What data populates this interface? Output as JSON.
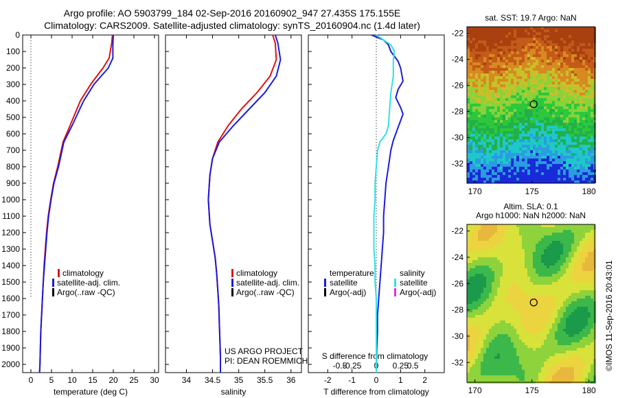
{
  "figure": {
    "title_line1": "Argo profile: AO 5903799_184 02-Sep-2016 20160902_947 27.435S 175.155E",
    "title_line2": "Climatology: CARS2009. Satellite-adjusted climatology: synTS_20160904.nc (1.4d later)",
    "credit": "©IMOS 11-Sep-2016 20:43:01",
    "project_line1": "US ARGO PROJECT",
    "project_line2": "PI: DEAN ROEMMICH"
  },
  "colors": {
    "climatology": "#e01010",
    "satellite": "#1a1adc",
    "argo": "#000000",
    "sal_satellite": "#30e0e8",
    "sal_argo": "#e030e0"
  },
  "chart_data": [
    {
      "type": "line",
      "xlabel": "temperature (deg C)",
      "ylabel": "",
      "xlim": [
        -2,
        31
      ],
      "ylim": [
        2050,
        0
      ],
      "xticks": [
        0,
        5,
        10,
        15,
        20,
        25,
        30
      ],
      "yticks": [
        0,
        100,
        200,
        300,
        400,
        500,
        600,
        700,
        800,
        900,
        1000,
        1100,
        1200,
        1300,
        1400,
        1500,
        1600,
        1700,
        1800,
        1900,
        2000
      ],
      "legend": [
        "climatology",
        "satellite-adj. clim.",
        "Argo(..raw -QC)"
      ],
      "series": [
        {
          "name": "climatology",
          "color_key": "climatology",
          "x": [
            19.8,
            19.6,
            19.0,
            17.5,
            14.5,
            12.0,
            9.5,
            7.8,
            6.5,
            5.5,
            4.8,
            4.2,
            3.8,
            3.5,
            3.2,
            3.0,
            2.8,
            2.6,
            2.4,
            2.3,
            2.2,
            2.1
          ],
          "y": [
            0,
            50,
            140,
            200,
            300,
            400,
            550,
            650,
            800,
            900,
            1000,
            1100,
            1200,
            1300,
            1400,
            1500,
            1600,
            1700,
            1800,
            1900,
            2000,
            2050
          ]
        },
        {
          "name": "satellite-adj. clim.",
          "color_key": "satellite",
          "x": [
            20.0,
            19.9,
            19.9,
            18.8,
            15.3,
            12.8,
            10.0,
            8.0,
            6.7,
            5.6,
            4.9,
            4.3,
            3.9,
            3.6,
            3.3,
            3.0,
            2.8,
            2.6,
            2.4,
            2.3,
            2.2,
            2.1
          ],
          "y": [
            0,
            50,
            140,
            200,
            300,
            400,
            550,
            650,
            800,
            900,
            1000,
            1100,
            1200,
            1300,
            1400,
            1500,
            1600,
            1700,
            1800,
            1900,
            2000,
            2050
          ]
        }
      ],
      "reference_x": 0,
      "reference_ymax": 1600
    },
    {
      "type": "line",
      "xlabel": "salinity",
      "ylabel": "",
      "xlim": [
        33.6,
        36.2
      ],
      "ylim": [
        2050,
        0
      ],
      "xticks": [
        34,
        34.5,
        35,
        35.5,
        36
      ],
      "legend": [
        "climatology",
        "satellite-adj. clim.",
        "Argo(..raw -QC)"
      ],
      "series": [
        {
          "name": "climatology",
          "color_key": "climatology",
          "x": [
            35.65,
            35.7,
            35.72,
            35.6,
            35.35,
            35.05,
            34.8,
            34.6,
            34.5,
            34.45,
            34.42,
            34.45,
            34.5,
            34.55,
            34.58,
            34.6,
            34.62,
            34.63,
            34.64,
            34.65,
            34.65
          ],
          "y": [
            0,
            50,
            150,
            250,
            350,
            450,
            550,
            650,
            750,
            850,
            1000,
            1150,
            1250,
            1350,
            1450,
            1550,
            1650,
            1750,
            1850,
            1950,
            2050
          ]
        },
        {
          "name": "satellite-adj. clim.",
          "color_key": "satellite",
          "x": [
            35.7,
            35.75,
            35.8,
            35.72,
            35.5,
            35.2,
            34.9,
            34.63,
            34.5,
            34.45,
            34.42,
            34.45,
            34.5,
            34.55,
            34.58,
            34.6,
            34.62,
            34.63,
            34.64,
            34.65,
            34.65
          ],
          "y": [
            0,
            50,
            150,
            250,
            350,
            450,
            550,
            650,
            750,
            850,
            1000,
            1150,
            1250,
            1350,
            1450,
            1550,
            1650,
            1750,
            1850,
            1950,
            2050
          ]
        }
      ]
    },
    {
      "type": "line",
      "xlabel": "T difference from climatology",
      "xlabel_top": "S difference from climatology",
      "xlim": [
        -2.8,
        2.8
      ],
      "ylim": [
        2050,
        0
      ],
      "xticks": [
        -2,
        -1,
        0,
        1,
        2
      ],
      "xticks_top": [
        "-0.5",
        "-0.25",
        "0",
        "0.25",
        "0.5"
      ],
      "legend_temperature": [
        "temperature",
        "satellite",
        "Argo(-adj)"
      ],
      "legend_salinity": [
        "salinity",
        "satellite",
        "Argo(-adj)"
      ],
      "series": [
        {
          "name": "temperature satellite",
          "color_key": "satellite",
          "x": [
            -0.2,
            0.3,
            0.5,
            0.6,
            0.9,
            1.0,
            1.1,
            0.9,
            0.8,
            1.0,
            1.1,
            1.0,
            0.9,
            0.8,
            0.7,
            0.6,
            0.5,
            0.4,
            0.35,
            0.3,
            0.3,
            0.25,
            0.2,
            0.15,
            0.1,
            0.05,
            0.05,
            0.02,
            0.0
          ],
          "y": [
            0,
            30,
            60,
            100,
            160,
            200,
            280,
            330,
            380,
            440,
            480,
            520,
            560,
            600,
            640,
            700,
            800,
            900,
            1000,
            1100,
            1200,
            1300,
            1400,
            1500,
            1600,
            1700,
            1800,
            1900,
            2050
          ]
        },
        {
          "name": "salinity satellite",
          "color_key": "sal_satellite",
          "x": [
            0.0,
            0.6,
            0.75,
            0.7,
            0.7,
            0.6,
            0.55,
            0.5,
            0.4,
            0.15,
            0.05,
            0.0,
            -0.05,
            -0.05,
            -0.1,
            -0.1,
            -0.1,
            -0.05,
            -0.05,
            0.0,
            0.0,
            0.0,
            0.0,
            0.0
          ],
          "y": [
            0,
            60,
            100,
            150,
            250,
            350,
            450,
            550,
            600,
            650,
            700,
            800,
            900,
            1000,
            1100,
            1200,
            1300,
            1400,
            1500,
            1600,
            1700,
            1800,
            1900,
            2050
          ]
        }
      ],
      "reference_x": 0
    }
  ],
  "maps": [
    {
      "title_line1": "sat. SST: 19.7  Argo: NaN",
      "title_line2": "",
      "xticks": [
        "170",
        "175",
        "180"
      ],
      "yticks": [
        "-22",
        "-24",
        "-26",
        "-28",
        "-30",
        "-32"
      ],
      "palette": [
        "#1a2ad8",
        "#2a9ce0",
        "#1ec8c8",
        "#22b04a",
        "#2cc83c",
        "#8ad23a",
        "#c8c02a",
        "#d88a20",
        "#c45a18",
        "#a84010"
      ],
      "marker": {
        "lon": 175.155,
        "lat": -27.435
      }
    },
    {
      "title_line1": "Altim. SLA: 0.1",
      "title_line2": "Argo h1000: NaN h2000: NaN",
      "xticks": [
        "170",
        "175",
        "180"
      ],
      "yticks": [
        "-22",
        "-24",
        "-26",
        "-28",
        "-30",
        "-32"
      ],
      "palette": [
        "#1a9a4a",
        "#3cb84a",
        "#8ed23c",
        "#d8e23a",
        "#ecd440",
        "#e8b83c"
      ],
      "marker": {
        "lon": 175.155,
        "lat": -27.435
      }
    }
  ]
}
